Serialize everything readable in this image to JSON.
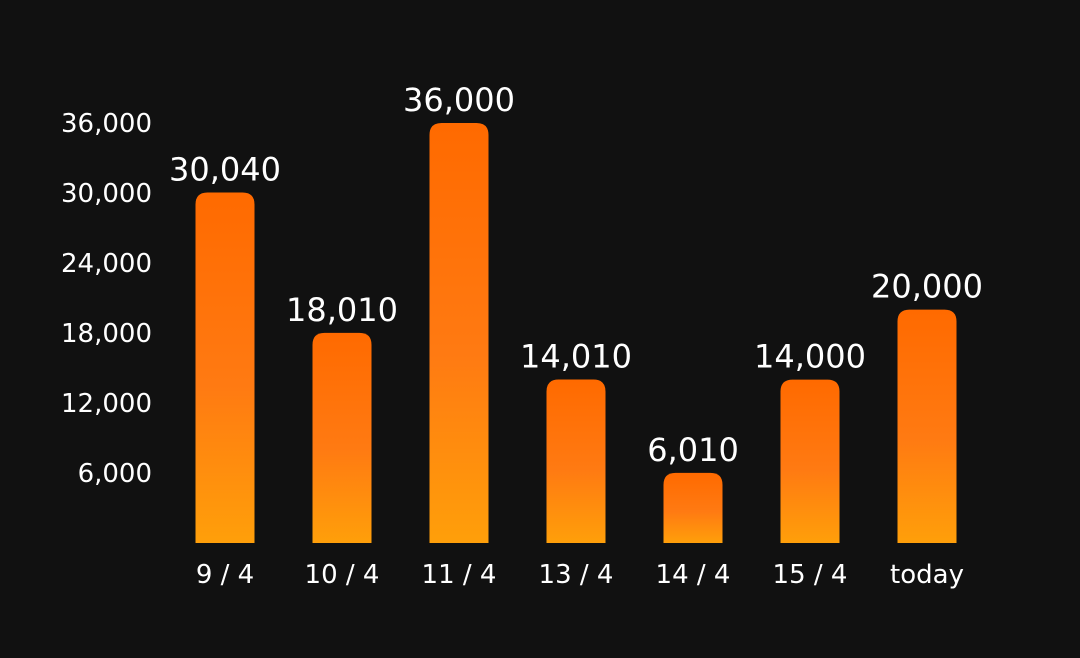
{
  "chart_data": {
    "type": "bar",
    "categories": [
      "9 / 4",
      "10 / 4",
      "11 / 4",
      "13 / 4",
      "14 / 4",
      "15 / 4",
      "today"
    ],
    "values": [
      30040,
      18010,
      36000,
      14010,
      6010,
      14000,
      20000
    ],
    "data_labels": [
      "30,040",
      "18,010",
      "36,000",
      "14,010",
      "6,010",
      "14,000",
      "20,000"
    ],
    "yticks": [
      6000,
      12000,
      18000,
      24000,
      30000,
      36000
    ],
    "ytick_labels": [
      "6,000",
      "12,000",
      "18,000",
      "24,000",
      "30,000",
      "36,000"
    ],
    "ylim": [
      0,
      36000
    ],
    "grid": false,
    "title": "",
    "xlabel": "",
    "ylabel": "",
    "colors": {
      "background": "#111111",
      "bar_top": "#ff6a00",
      "bar_mid": "#ff7a12",
      "bar_bottom": "#ff9f0a",
      "text": "#ffffff"
    }
  }
}
